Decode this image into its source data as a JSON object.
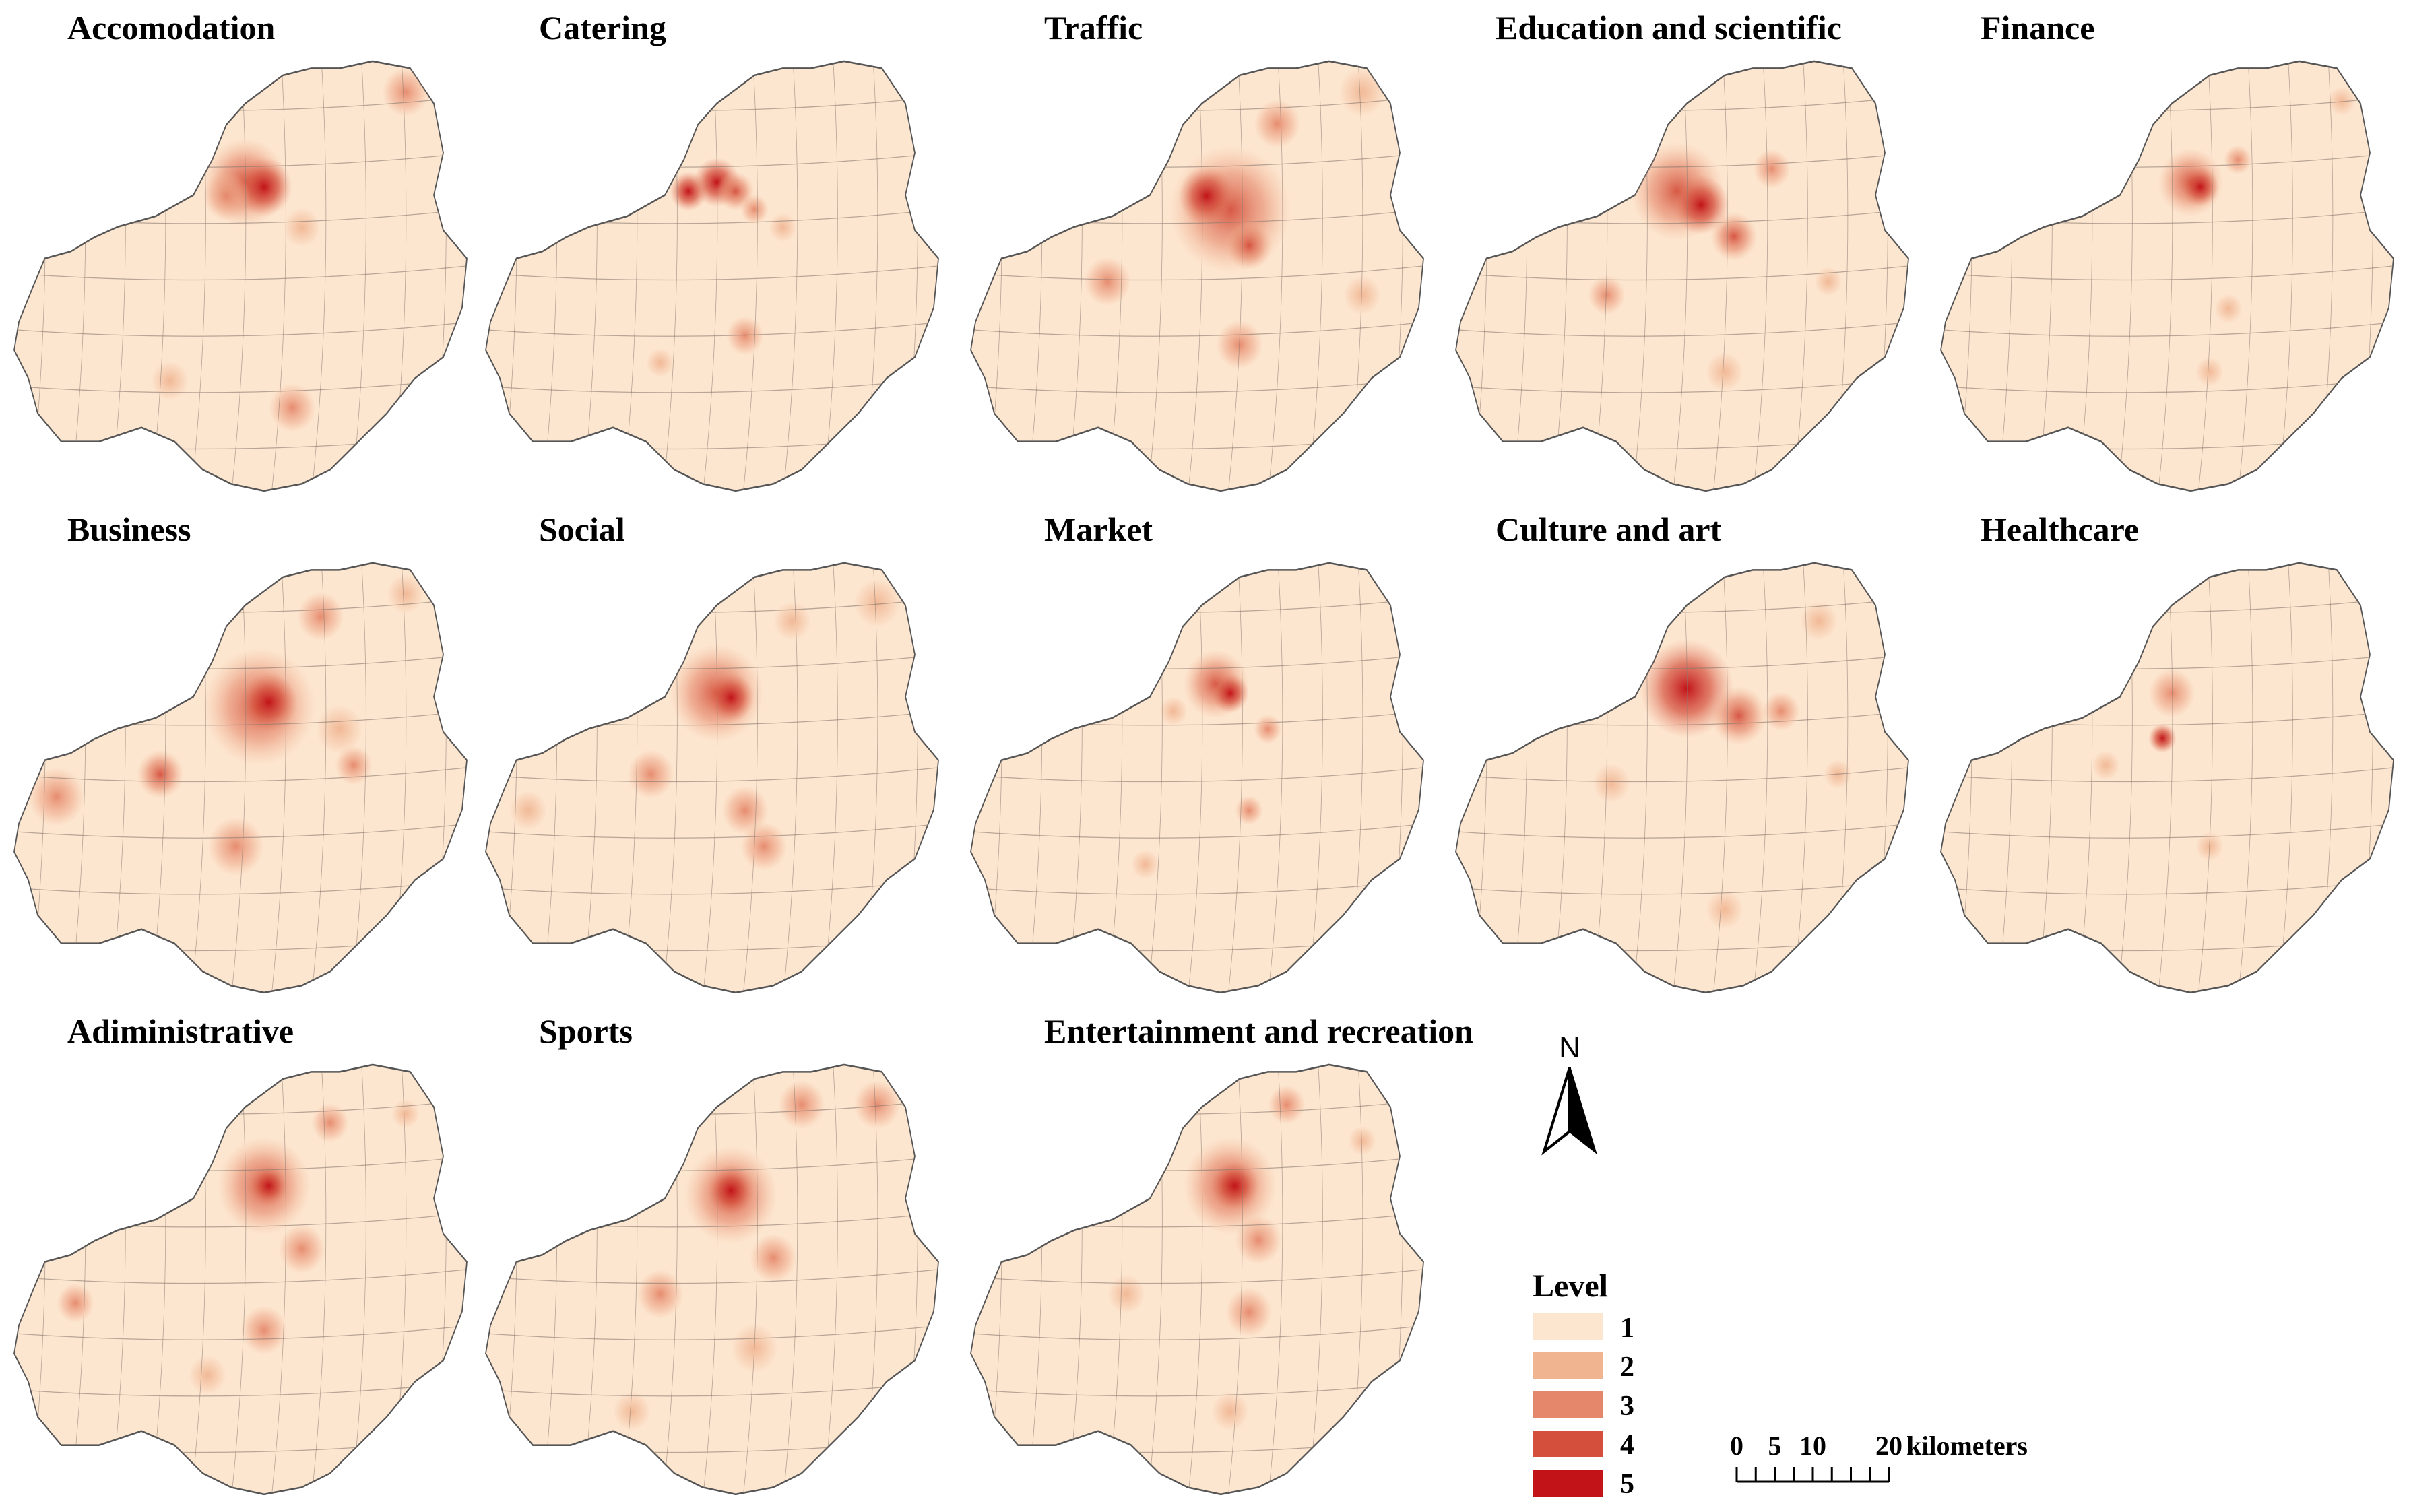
{
  "figure": {
    "panels": [
      {
        "title": "Accomodation",
        "hotspots": [
          [
            0.52,
            0.3,
            0.09,
            4
          ],
          [
            0.56,
            0.31,
            0.06,
            5
          ],
          [
            0.48,
            0.33,
            0.05,
            3
          ],
          [
            0.86,
            0.1,
            0.05,
            3
          ],
          [
            0.62,
            0.8,
            0.05,
            3
          ],
          [
            0.36,
            0.74,
            0.04,
            2
          ],
          [
            0.64,
            0.4,
            0.04,
            2
          ]
        ]
      },
      {
        "title": "Catering",
        "hotspots": [
          [
            0.46,
            0.32,
            0.04,
            5
          ],
          [
            0.52,
            0.3,
            0.05,
            5
          ],
          [
            0.56,
            0.32,
            0.04,
            4
          ],
          [
            0.6,
            0.36,
            0.03,
            3
          ],
          [
            0.66,
            0.4,
            0.03,
            2
          ],
          [
            0.58,
            0.64,
            0.04,
            3
          ],
          [
            0.4,
            0.7,
            0.03,
            2
          ]
        ]
      },
      {
        "title": "Traffic",
        "hotspots": [
          [
            0.58,
            0.36,
            0.13,
            4
          ],
          [
            0.53,
            0.33,
            0.06,
            5
          ],
          [
            0.62,
            0.44,
            0.05,
            4
          ],
          [
            0.68,
            0.17,
            0.05,
            3
          ],
          [
            0.86,
            0.1,
            0.05,
            2
          ],
          [
            0.32,
            0.52,
            0.05,
            3
          ],
          [
            0.6,
            0.66,
            0.05,
            3
          ],
          [
            0.86,
            0.55,
            0.04,
            2
          ]
        ]
      },
      {
        "title": "Education and scientific",
        "hotspots": [
          [
            0.5,
            0.32,
            0.1,
            4
          ],
          [
            0.55,
            0.35,
            0.06,
            5
          ],
          [
            0.62,
            0.42,
            0.05,
            4
          ],
          [
            0.7,
            0.27,
            0.04,
            3
          ],
          [
            0.35,
            0.55,
            0.04,
            3
          ],
          [
            0.6,
            0.72,
            0.04,
            2
          ],
          [
            0.82,
            0.52,
            0.03,
            2
          ]
        ]
      },
      {
        "title": "Finance",
        "hotspots": [
          [
            0.56,
            0.3,
            0.07,
            4
          ],
          [
            0.58,
            0.31,
            0.04,
            5
          ],
          [
            0.66,
            0.25,
            0.03,
            3
          ],
          [
            0.64,
            0.58,
            0.03,
            2
          ],
          [
            0.6,
            0.72,
            0.03,
            2
          ],
          [
            0.88,
            0.12,
            0.03,
            2
          ]
        ]
      },
      {
        "title": "Business",
        "hotspots": [
          [
            0.55,
            0.35,
            0.12,
            4
          ],
          [
            0.57,
            0.34,
            0.06,
            5
          ],
          [
            0.68,
            0.15,
            0.05,
            3
          ],
          [
            0.34,
            0.5,
            0.05,
            4
          ],
          [
            0.12,
            0.55,
            0.06,
            3
          ],
          [
            0.75,
            0.48,
            0.04,
            3
          ],
          [
            0.5,
            0.66,
            0.06,
            3
          ],
          [
            0.72,
            0.4,
            0.05,
            2
          ],
          [
            0.86,
            0.1,
            0.04,
            2
          ]
        ]
      },
      {
        "title": "Social",
        "hotspots": [
          [
            0.52,
            0.32,
            0.1,
            4
          ],
          [
            0.55,
            0.33,
            0.05,
            5
          ],
          [
            0.38,
            0.5,
            0.05,
            3
          ],
          [
            0.58,
            0.58,
            0.05,
            3
          ],
          [
            0.62,
            0.66,
            0.05,
            3
          ],
          [
            0.86,
            0.12,
            0.05,
            2
          ],
          [
            0.68,
            0.16,
            0.04,
            2
          ],
          [
            0.12,
            0.58,
            0.04,
            2
          ]
        ]
      },
      {
        "title": "Market",
        "hotspots": [
          [
            0.55,
            0.3,
            0.07,
            4
          ],
          [
            0.58,
            0.32,
            0.04,
            5
          ],
          [
            0.66,
            0.4,
            0.03,
            3
          ],
          [
            0.46,
            0.36,
            0.03,
            2
          ],
          [
            0.62,
            0.58,
            0.03,
            3
          ],
          [
            0.4,
            0.7,
            0.03,
            2
          ]
        ]
      },
      {
        "title": "Culture and art",
        "hotspots": [
          [
            0.52,
            0.31,
            0.1,
            5
          ],
          [
            0.63,
            0.37,
            0.06,
            4
          ],
          [
            0.72,
            0.36,
            0.04,
            3
          ],
          [
            0.8,
            0.16,
            0.04,
            2
          ],
          [
            0.36,
            0.52,
            0.04,
            2
          ],
          [
            0.6,
            0.8,
            0.04,
            2
          ],
          [
            0.84,
            0.5,
            0.03,
            2
          ]
        ]
      },
      {
        "title": "Healthcare",
        "hotspots": [
          [
            0.5,
            0.42,
            0.03,
            5
          ],
          [
            0.52,
            0.32,
            0.05,
            3
          ],
          [
            0.38,
            0.48,
            0.03,
            2
          ],
          [
            0.6,
            0.66,
            0.03,
            2
          ]
        ]
      },
      {
        "title": "Adiministrative",
        "hotspots": [
          [
            0.56,
            0.3,
            0.1,
            4
          ],
          [
            0.57,
            0.3,
            0.04,
            5
          ],
          [
            0.64,
            0.44,
            0.05,
            3
          ],
          [
            0.7,
            0.16,
            0.04,
            3
          ],
          [
            0.16,
            0.56,
            0.04,
            3
          ],
          [
            0.56,
            0.62,
            0.05,
            3
          ],
          [
            0.44,
            0.72,
            0.04,
            2
          ],
          [
            0.86,
            0.14,
            0.03,
            2
          ]
        ]
      },
      {
        "title": "Sports",
        "hotspots": [
          [
            0.55,
            0.32,
            0.1,
            4
          ],
          [
            0.55,
            0.31,
            0.05,
            5
          ],
          [
            0.64,
            0.46,
            0.05,
            3
          ],
          [
            0.7,
            0.12,
            0.05,
            3
          ],
          [
            0.86,
            0.12,
            0.05,
            3
          ],
          [
            0.4,
            0.54,
            0.05,
            3
          ],
          [
            0.6,
            0.66,
            0.05,
            2
          ],
          [
            0.34,
            0.8,
            0.04,
            2
          ]
        ]
      },
      {
        "title": "Entertainment and recreation",
        "hotspots": [
          [
            0.58,
            0.3,
            0.1,
            4
          ],
          [
            0.59,
            0.3,
            0.05,
            5
          ],
          [
            0.64,
            0.42,
            0.05,
            3
          ],
          [
            0.7,
            0.12,
            0.04,
            3
          ],
          [
            0.62,
            0.58,
            0.05,
            3
          ],
          [
            0.36,
            0.54,
            0.04,
            2
          ],
          [
            0.58,
            0.8,
            0.04,
            2
          ],
          [
            0.86,
            0.2,
            0.03,
            2
          ]
        ]
      }
    ],
    "north_label": "N",
    "legend": {
      "title": "Level",
      "items": [
        {
          "label": "1",
          "color": "#fde6d0"
        },
        {
          "label": "2",
          "color": "#f0b490"
        },
        {
          "label": "3",
          "color": "#e5876a"
        },
        {
          "label": "4",
          "color": "#d44f3c"
        },
        {
          "label": "5",
          "color": "#c21319"
        }
      ]
    },
    "scale_bar": {
      "ticks": [
        "0",
        "5",
        "10",
        "20"
      ],
      "unit": "kilometers"
    }
  }
}
